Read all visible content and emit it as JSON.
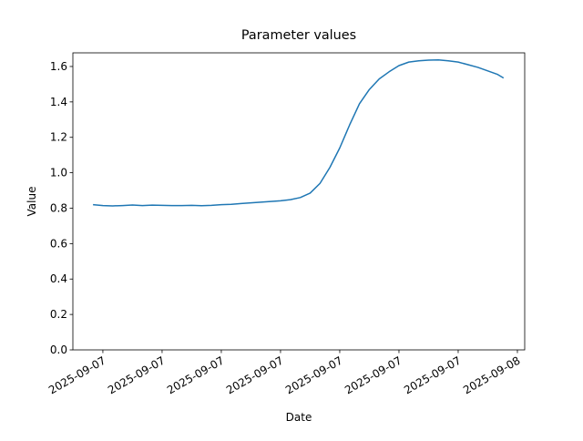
{
  "chart_data": {
    "type": "line",
    "title": "Parameter values",
    "x_label": "Date",
    "y_label": "Value",
    "x": [
      2.5,
      3,
      3.5,
      4,
      4.5,
      5,
      5.5,
      6,
      6.5,
      7,
      7.5,
      8,
      8.5,
      9,
      9.5,
      10,
      10.5,
      11,
      11.5,
      12,
      12.5,
      13,
      13.5,
      14,
      14.5,
      15,
      15.5,
      16,
      16.5,
      17,
      17.5,
      18,
      18.5,
      19,
      19.5,
      20,
      20.5,
      21,
      21.5,
      22,
      22.5,
      23,
      23.3
    ],
    "values": [
      0.82,
      0.815,
      0.813,
      0.815,
      0.818,
      0.815,
      0.817,
      0.816,
      0.815,
      0.815,
      0.816,
      0.814,
      0.816,
      0.82,
      0.822,
      0.826,
      0.83,
      0.834,
      0.838,
      0.842,
      0.848,
      0.86,
      0.885,
      0.94,
      1.03,
      1.14,
      1.27,
      1.39,
      1.47,
      1.53,
      1.57,
      1.605,
      1.625,
      1.632,
      1.636,
      1.637,
      1.632,
      1.625,
      1.61,
      1.595,
      1.575,
      1.555,
      1.535
    ],
    "color": "#1f77b4",
    "xlim": [
      1.48,
      24.37
    ],
    "xticks": [
      {
        "value": 3,
        "label": "2025-09-07"
      },
      {
        "value": 6,
        "label": "2025-09-07"
      },
      {
        "value": 9,
        "label": "2025-09-07"
      },
      {
        "value": 12,
        "label": "2025-09-07"
      },
      {
        "value": 15,
        "label": "2025-09-07"
      },
      {
        "value": 18,
        "label": "2025-09-07"
      },
      {
        "value": 21,
        "label": "2025-09-07"
      },
      {
        "value": 24,
        "label": "2025-09-08"
      }
    ],
    "ylim": [
      0,
      1.677
    ],
    "yticks": [
      {
        "value": 0,
        "label": "0.0"
      },
      0.2,
      0.4,
      0.6,
      0.8,
      {
        "value": 1,
        "label": "1.0"
      },
      1.2,
      1.4,
      1.6
    ]
  }
}
